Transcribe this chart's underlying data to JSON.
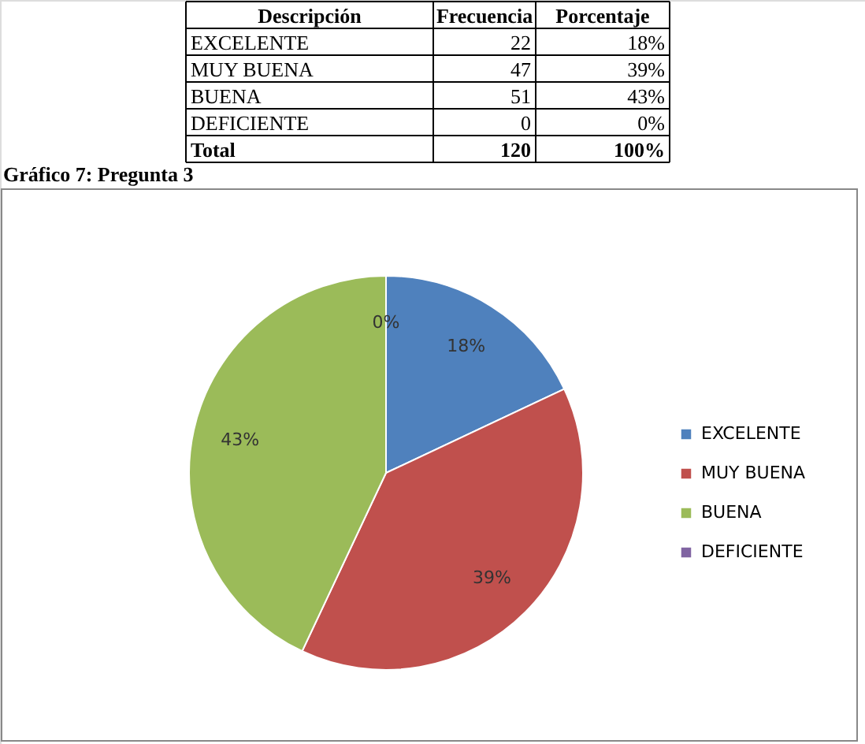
{
  "chart_data": {
    "type": "pie",
    "title": "Gráfico 7: Pregunta 3",
    "categories": [
      "EXCELENTE",
      "MUY BUENA",
      "BUENA",
      "DEFICIENTE"
    ],
    "values": [
      18,
      39,
      43,
      0
    ],
    "value_labels": [
      "18%",
      "39%",
      "43%",
      "0%"
    ],
    "colors": [
      "#4f81bd",
      "#c0504d",
      "#9bbb59",
      "#8064a2"
    ],
    "annotations": [
      "Descripción",
      "Frecuencia",
      "Porcentaje",
      "22",
      "47",
      "51",
      "0",
      "Total",
      "120",
      "100%"
    ],
    "legend": "right"
  }
}
